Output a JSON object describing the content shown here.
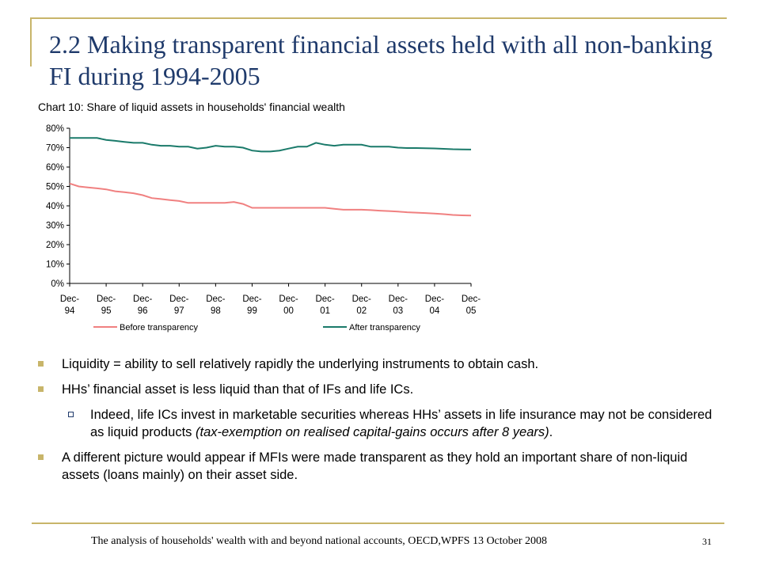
{
  "slide": {
    "title": "2.2 Making transparent financial assets held with all non-banking FI during 1994-2005",
    "footer": "The analysis of households' wealth with and beyond national accounts, OECD,WPFS 13 October 2008",
    "page_number": "31",
    "colors": {
      "accent": "#c8b56a",
      "title": "#1f3a6b",
      "before": "#f08080",
      "after": "#1a7a6a"
    }
  },
  "bullets": {
    "b1": "Liquidity = ability to sell relatively rapidly the underlying instruments to obtain cash.",
    "b2": "HHs’ financial asset is less liquid than that of IFs and life ICs.",
    "sub1_a": "Indeed, life ICs invest in marketable securities whereas HHs’ assets in life insurance may not be considered as liquid products ",
    "sub1_b": "(tax-exemption on realised capital-gains occurs after 8 years)",
    "sub1_c": ".",
    "b3": "A different picture would appear if MFIs were made transparent as they hold an important share of non-liquid assets (loans mainly) on their asset side."
  },
  "chart_data": {
    "type": "line",
    "title": "Chart 10: Share of liquid assets in households' financial wealth",
    "ylim": [
      0,
      80
    ],
    "yticks": [
      "80%",
      "70%",
      "60%",
      "50%",
      "40%",
      "30%",
      "20%",
      "10%",
      "0%"
    ],
    "categories": [
      [
        "Dec-",
        "94"
      ],
      [
        "Dec-",
        "95"
      ],
      [
        "Dec-",
        "96"
      ],
      [
        "Dec-",
        "97"
      ],
      [
        "Dec-",
        "98"
      ],
      [
        "Dec-",
        "99"
      ],
      [
        "Dec-",
        "00"
      ],
      [
        "Dec-",
        "01"
      ],
      [
        "Dec-",
        "02"
      ],
      [
        "Dec-",
        "03"
      ],
      [
        "Dec-",
        "04"
      ],
      [
        "Dec-",
        "05"
      ]
    ],
    "x": [
      0,
      0.25,
      0.5,
      0.75,
      1,
      1.25,
      1.5,
      1.75,
      2,
      2.25,
      2.5,
      2.75,
      3,
      3.25,
      3.5,
      3.75,
      4,
      4.25,
      4.5,
      4.75,
      5,
      5.25,
      5.5,
      5.75,
      6,
      6.25,
      6.5,
      6.75,
      7,
      7.25,
      7.5,
      7.75,
      8,
      8.25,
      8.5,
      8.75,
      9,
      9.25,
      9.5,
      9.75,
      10,
      10.25,
      10.5,
      10.75,
      11
    ],
    "series": [
      {
        "name": "Before transparency",
        "values": [
          51.5,
          50,
          49.5,
          49,
          48.5,
          47.5,
          47,
          46.5,
          45.5,
          44,
          43.5,
          43,
          42.5,
          41.5,
          41.5,
          41.5,
          41.5,
          41.5,
          42,
          41,
          39,
          39,
          39,
          39,
          39,
          39,
          39,
          39,
          39,
          38.5,
          38,
          38,
          38,
          37.8,
          37.5,
          37.3,
          37,
          36.7,
          36.5,
          36.3,
          36,
          35.7,
          35.3,
          35.1,
          35
        ]
      },
      {
        "name": "After transparency",
        "values": [
          75,
          75,
          75,
          75,
          74,
          73.5,
          73,
          72.5,
          72.5,
          71.5,
          71,
          71,
          70.5,
          70.5,
          69.5,
          70,
          71,
          70.5,
          70.5,
          70,
          68.5,
          68,
          68,
          68.5,
          69.5,
          70.5,
          70.5,
          72.5,
          71.5,
          71,
          71.5,
          71.5,
          71.5,
          70.5,
          70.5,
          70.5,
          70,
          69.8,
          69.8,
          69.7,
          69.6,
          69.4,
          69.2,
          69.1,
          69
        ]
      }
    ],
    "legend": "bottom",
    "grid": false
  }
}
